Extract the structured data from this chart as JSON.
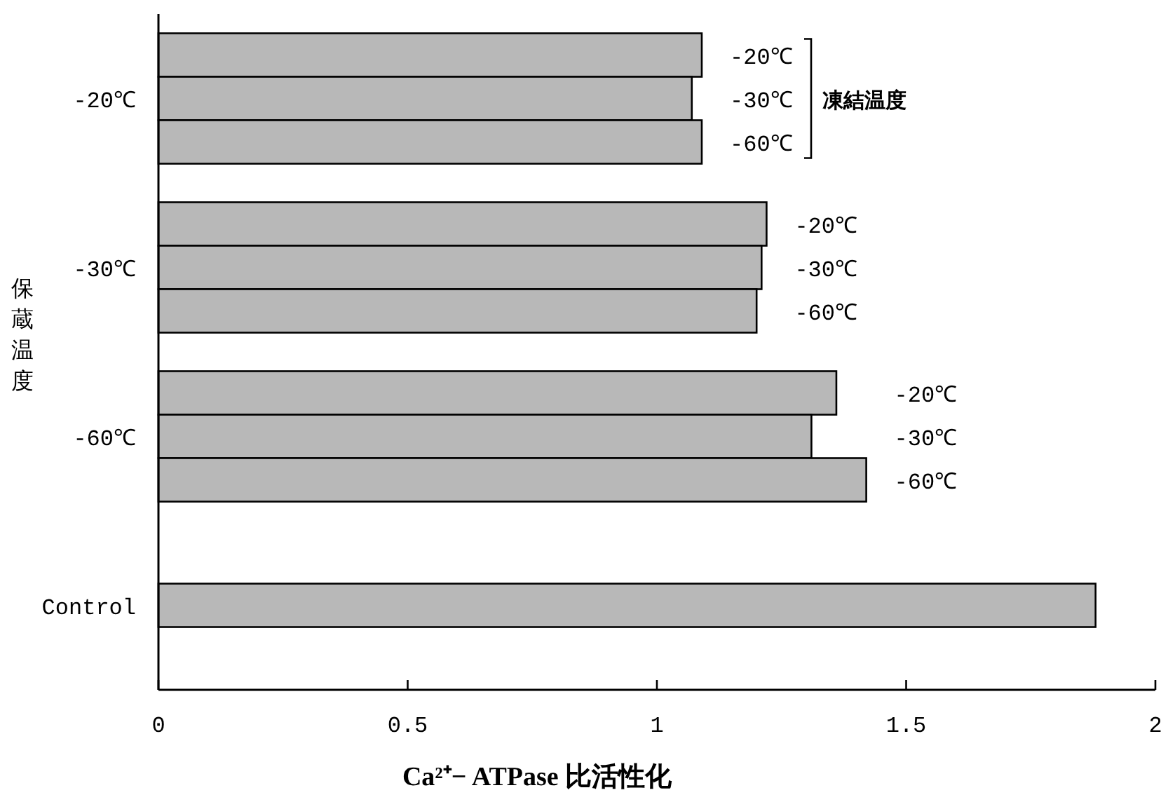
{
  "chart_data": {
    "type": "bar",
    "orientation": "horizontal",
    "categories": [
      "-20℃",
      "-30℃",
      "-60℃",
      "Control"
    ],
    "series": [
      {
        "name": "-20℃",
        "color": "#b8b8b8",
        "values": [
          1.09,
          1.22,
          1.36,
          null
        ]
      },
      {
        "name": "-30℃",
        "color": "#b8b8b8",
        "values": [
          1.07,
          1.21,
          1.31,
          1.88
        ]
      },
      {
        "name": "-60℃",
        "color": "#b8b8b8",
        "values": [
          1.09,
          1.2,
          1.42,
          null
        ]
      }
    ],
    "legend_title": "凍結温度",
    "xlim": [
      0,
      2
    ],
    "xticks": [
      0,
      0.5,
      1,
      1.5,
      2
    ],
    "xlabel": "Ca²⁺− ATPase 比活性化",
    "ylabel": "保蔵温度"
  }
}
